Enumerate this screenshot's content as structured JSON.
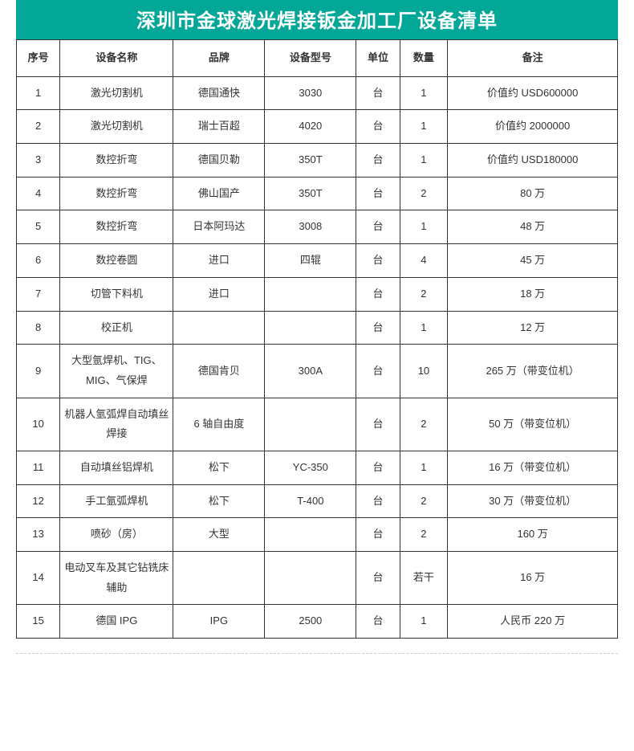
{
  "title": "深圳市金球激光焊接钣金加工厂设备清单",
  "header_bg": "#03a797",
  "header_text_color": "#ffffff",
  "border_color": "#333333",
  "columns": [
    {
      "key": "num",
      "label": "序号"
    },
    {
      "key": "name",
      "label": "设备名称"
    },
    {
      "key": "brand",
      "label": "品牌"
    },
    {
      "key": "model",
      "label": "设备型号"
    },
    {
      "key": "unit",
      "label": "单位"
    },
    {
      "key": "qty",
      "label": "数量"
    },
    {
      "key": "remark",
      "label": "备注"
    }
  ],
  "rows": [
    {
      "num": "1",
      "name": "激光切割机",
      "brand": "德国通快",
      "model": "3030",
      "unit": "台",
      "qty": "1",
      "remark": "价值约 USD600000"
    },
    {
      "num": "2",
      "name": "激光切割机",
      "brand": "瑞士百超",
      "model": "4020",
      "unit": "台",
      "qty": "1",
      "remark": "价值约 2000000"
    },
    {
      "num": "3",
      "name": "数控折弯",
      "brand": "德国贝勒",
      "model": "350T",
      "unit": "台",
      "qty": "1",
      "remark": "价值约 USD180000"
    },
    {
      "num": "4",
      "name": "数控折弯",
      "brand": "佛山国产",
      "model": "350T",
      "unit": "台",
      "qty": "2",
      "remark": "80 万"
    },
    {
      "num": "5",
      "name": "数控折弯",
      "brand": "日本阿玛达",
      "model": "3008",
      "unit": "台",
      "qty": "1",
      "remark": "48 万"
    },
    {
      "num": "6",
      "name": "数控卷圆",
      "brand": "进口",
      "model": "四辊",
      "unit": "台",
      "qty": "4",
      "remark": "45 万"
    },
    {
      "num": "7",
      "name": "切管下料机",
      "brand": "进口",
      "model": "",
      "unit": "台",
      "qty": "2",
      "remark": "18 万"
    },
    {
      "num": "8",
      "name": "校正机",
      "brand": "",
      "model": "",
      "unit": "台",
      "qty": "1",
      "remark": "12 万"
    },
    {
      "num": "9",
      "name": "大型氩焊机、TIG、MIG、气保焊",
      "brand": "德国肯贝",
      "model": "300A",
      "unit": "台",
      "qty": "10",
      "remark": "265 万（带变位机）"
    },
    {
      "num": "10",
      "name": "机器人氩弧焊自动填丝焊接",
      "brand": "6 轴自由度",
      "model": "",
      "unit": "台",
      "qty": "2",
      "remark": "50 万（带变位机）"
    },
    {
      "num": "11",
      "name": "自动填丝铝焊机",
      "brand": "松下",
      "model": "YC-350",
      "unit": "台",
      "qty": "1",
      "remark": "16 万（带变位机）"
    },
    {
      "num": "12",
      "name": "手工氩弧焊机",
      "brand": "松下",
      "model": "T-400",
      "unit": "台",
      "qty": "2",
      "remark": "30 万（带变位机）"
    },
    {
      "num": "13",
      "name": "喷砂（房）",
      "brand": "大型",
      "model": "",
      "unit": "台",
      "qty": "2",
      "remark": "160 万"
    },
    {
      "num": "14",
      "name": "电动叉车及其它钻铣床辅助",
      "brand": "",
      "model": "",
      "unit": "台",
      "qty": "若干",
      "remark": "16 万"
    },
    {
      "num": "15",
      "name": "德国 IPG",
      "brand": "IPG",
      "model": "2500",
      "unit": "台",
      "qty": "1",
      "remark": "人民币 220 万"
    }
  ]
}
